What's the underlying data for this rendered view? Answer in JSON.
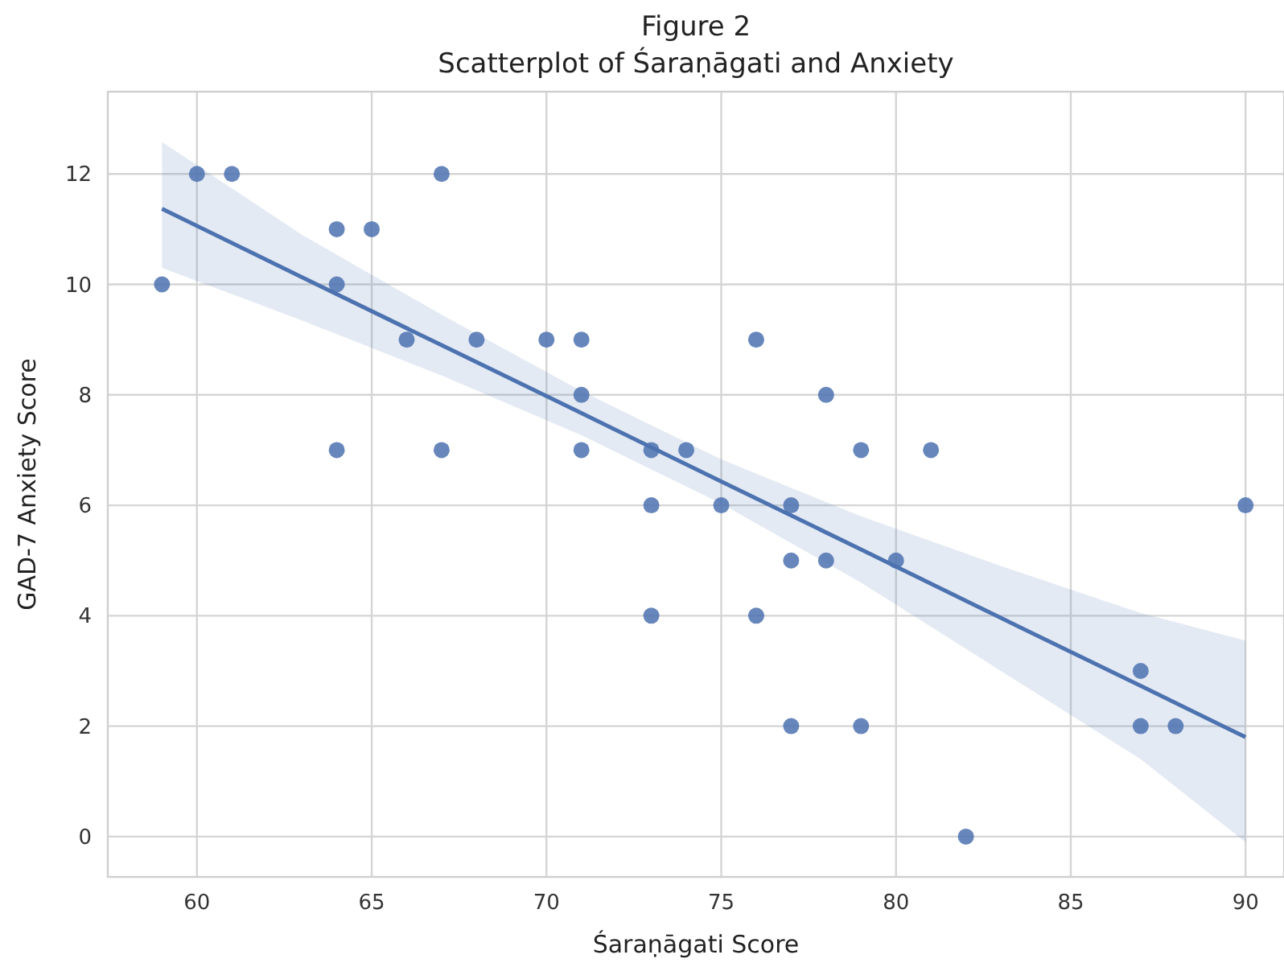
{
  "chart_data": {
    "type": "scatter",
    "title": "Figure 2",
    "subtitle": "Scatterplot of Śaraṇāgati and Anxiety",
    "xlabel": "Śaraṇāgati Score",
    "ylabel": "GAD-7 Anxiety Score",
    "xlim": [
      57.45,
      91.1
    ],
    "ylim": [
      -0.73,
      13.49
    ],
    "xticks": [
      60,
      65,
      70,
      75,
      80,
      85,
      90
    ],
    "yticks": [
      0,
      2,
      4,
      6,
      8,
      10,
      12
    ],
    "grid": true,
    "marker": "circle",
    "series": [
      {
        "color": "#4c72b0",
        "x": [
          59,
          60,
          61,
          64,
          65,
          67,
          64,
          66,
          68,
          70,
          71,
          71,
          64,
          67,
          71,
          73,
          74,
          73,
          75,
          77,
          73,
          76,
          78,
          79,
          81,
          77,
          78,
          80,
          76,
          77,
          79,
          82,
          87,
          87,
          88,
          90
        ],
        "values": [
          10,
          12,
          12,
          11,
          11,
          12,
          10,
          9,
          9,
          9,
          9,
          8,
          7,
          7,
          7,
          7,
          7,
          6,
          6,
          6,
          4,
          9,
          8,
          7,
          7,
          5,
          5,
          5,
          4,
          2,
          2,
          0,
          3,
          2,
          2,
          6
        ]
      },
      {
        "type": "line",
        "color": "#4c72b0",
        "marker": "none",
        "x": [
          59,
          63,
          67,
          71,
          75,
          79,
          83,
          87,
          90
        ],
        "values": [
          11.37,
          10.13,
          8.9,
          7.67,
          6.43,
          5.2,
          3.96,
          2.73,
          1.8
        ],
        "lower": [
          10.3,
          9.35,
          8.35,
          7.27,
          6.03,
          4.6,
          3.0,
          1.4,
          -0.1
        ],
        "upper": [
          12.58,
          10.9,
          9.45,
          8.07,
          6.83,
          5.8,
          4.9,
          4.05,
          3.55
        ]
      }
    ]
  }
}
